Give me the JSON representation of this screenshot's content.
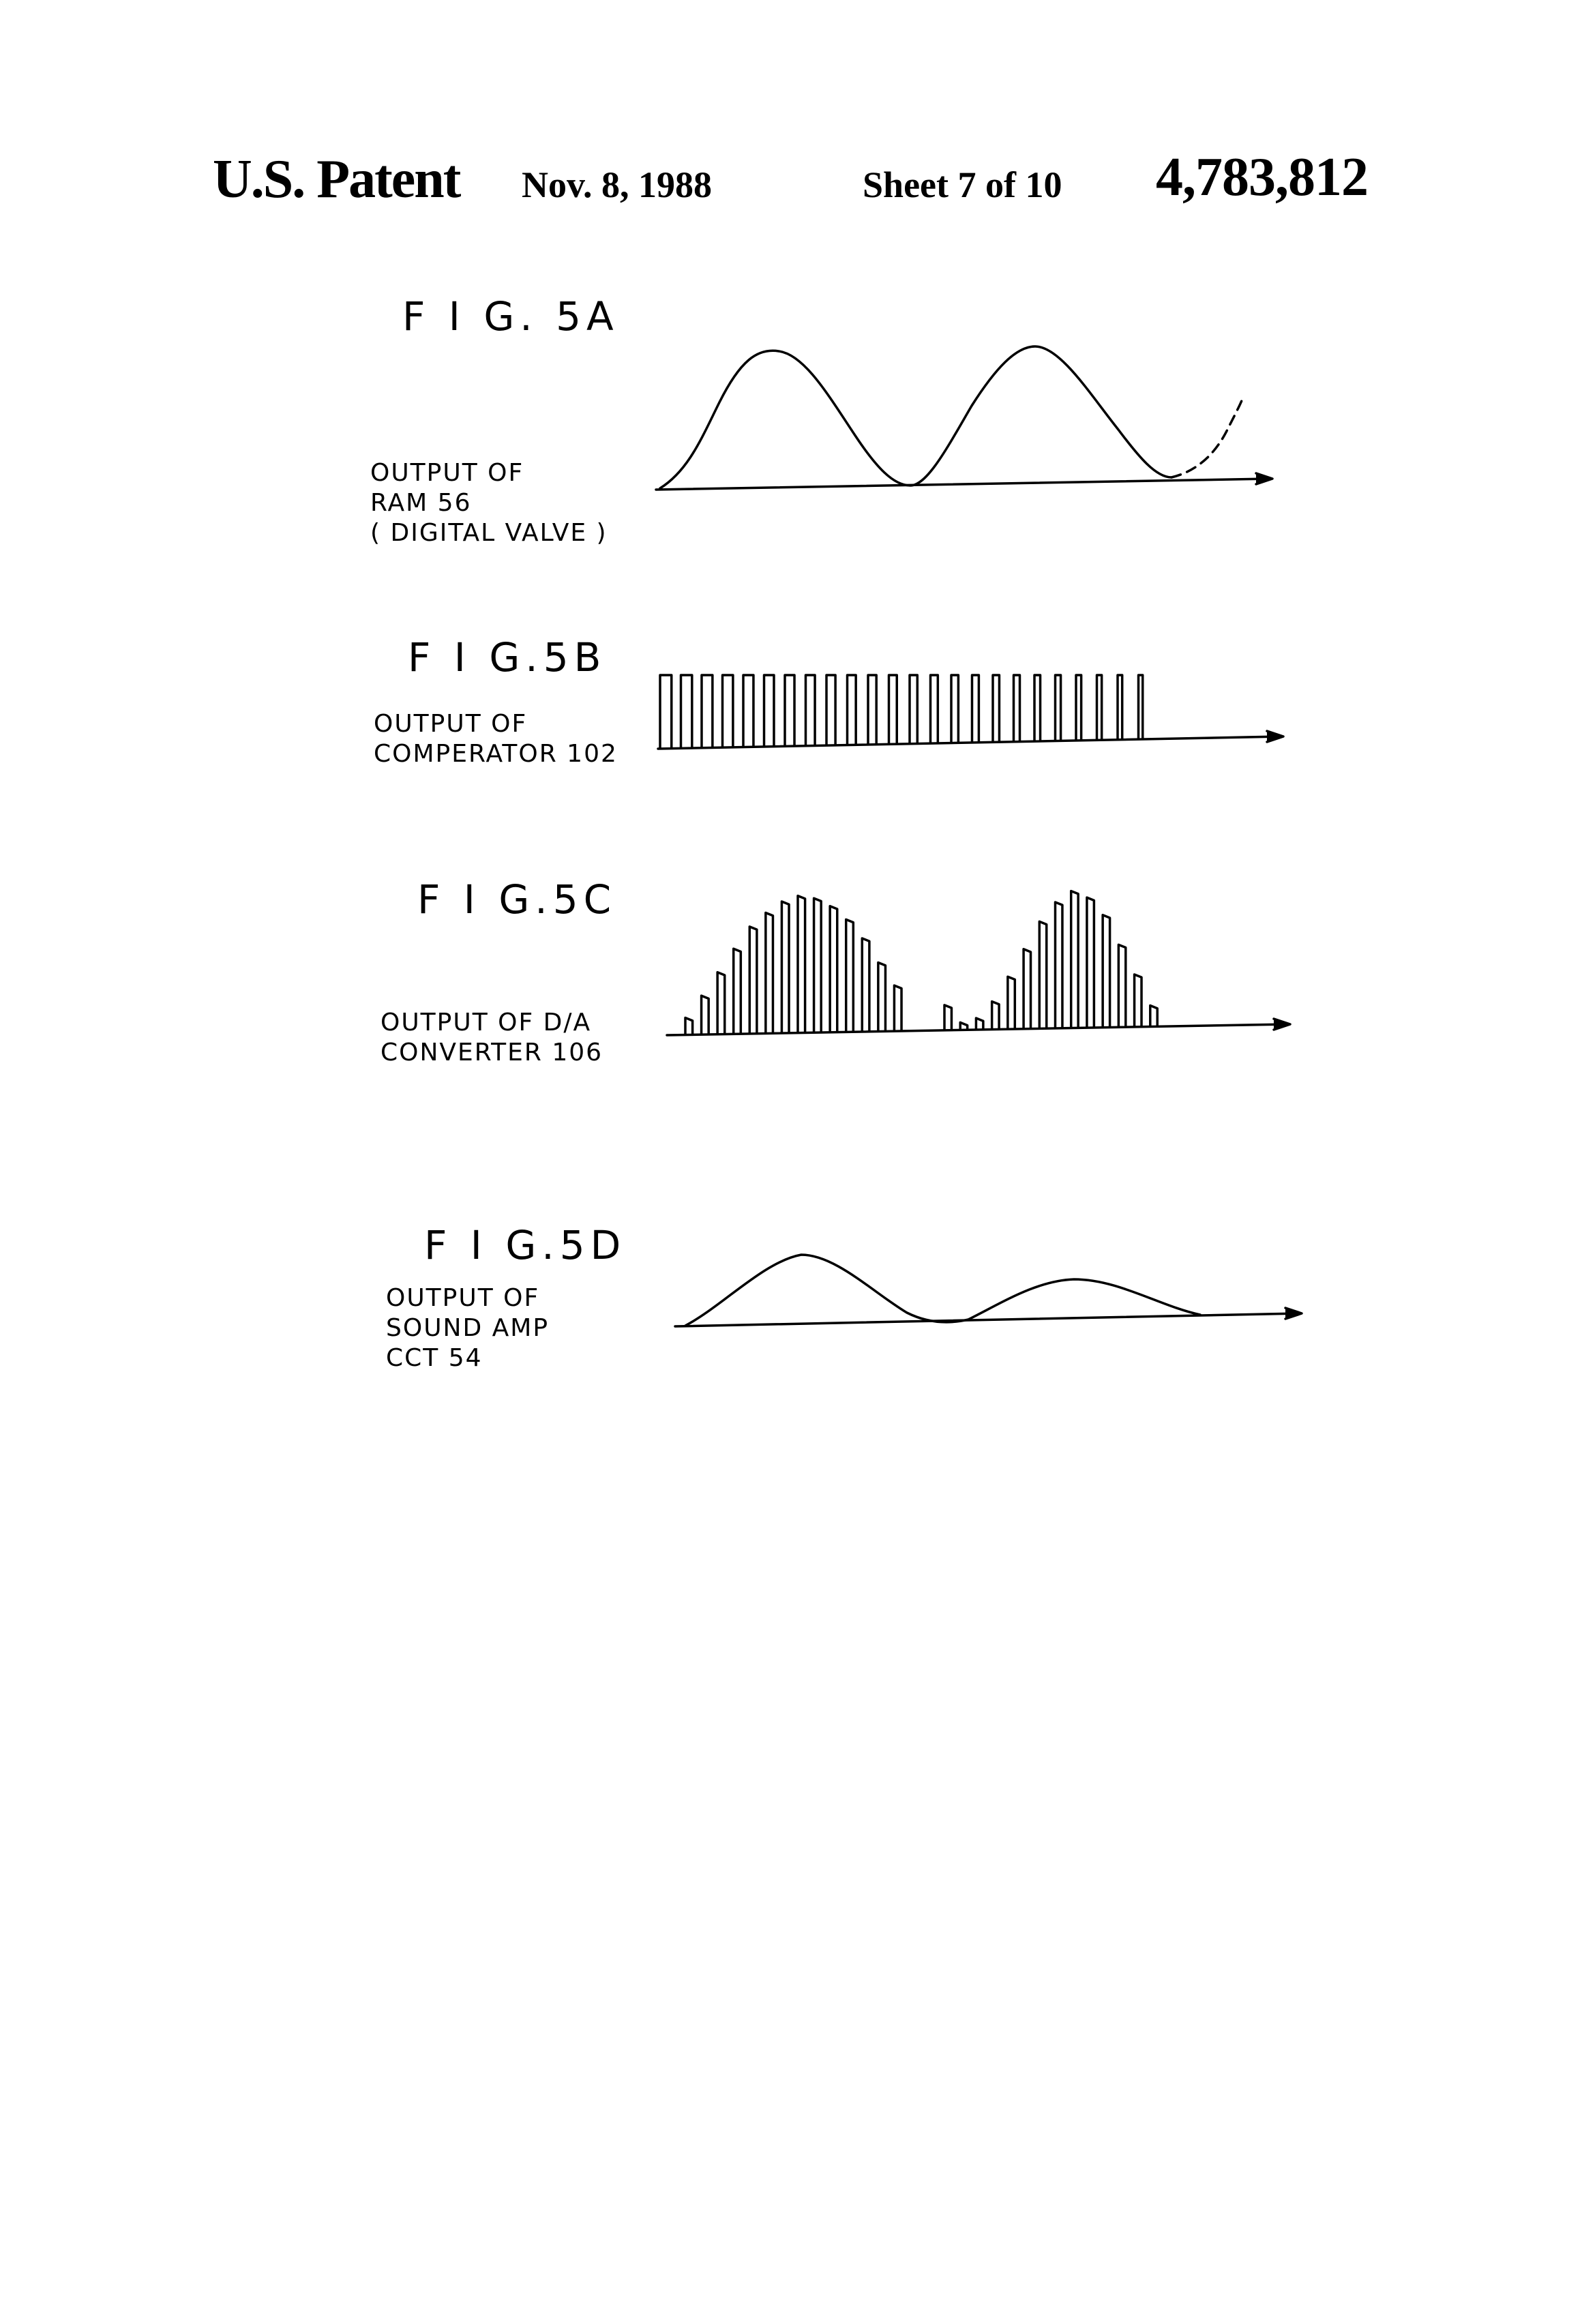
{
  "header": {
    "patent_label": "U.S. Patent",
    "date": "Nov. 8, 1988",
    "sheet": "Sheet 7 of 10",
    "number": "4,783,812"
  },
  "figures": {
    "fig5a": {
      "title": "F I G. 5A",
      "label_lines": [
        "OUTPUT OF",
        "RAM 56",
        "( DIGITAL VALVE )"
      ]
    },
    "fig5b": {
      "title": "F I G.5B",
      "label_lines": [
        "OUTPUT OF",
        "COMPERATOR 102"
      ]
    },
    "fig5c": {
      "title": "F I G.5C",
      "label_lines": [
        "OUTPUT OF D/A",
        "CONVERTER  106"
      ]
    },
    "fig5d": {
      "title": "F I G.5D",
      "label_lines": [
        "OUTPUT OF",
        "SOUND AMP",
        "CCT 54"
      ]
    }
  },
  "drawing": {
    "ink_color": "#000000",
    "fig5b_pulse_count": 24,
    "fig5c_bar_levels": [
      0.12,
      0.28,
      0.45,
      0.62,
      0.78,
      0.88,
      0.96,
      1.0,
      0.98,
      0.92,
      0.82,
      0.68,
      0.5,
      0.33,
      0.18,
      0.05,
      0.08,
      0.2,
      0.38,
      0.58,
      0.78,
      0.92,
      1.0,
      0.95,
      0.82,
      0.6,
      0.38,
      0.15
    ]
  }
}
